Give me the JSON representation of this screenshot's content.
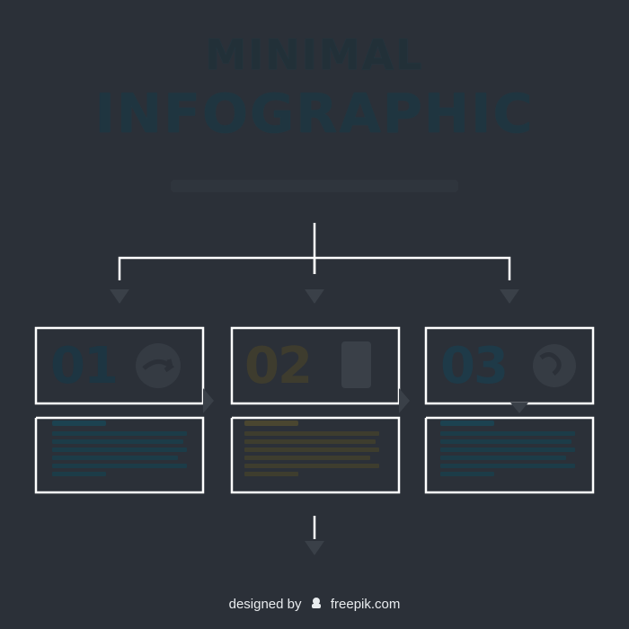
{
  "title": {
    "line1": "MINIMAL",
    "line2": "INFOGRAPHIC"
  },
  "steps": [
    {
      "number": "01",
      "icon": "globe-arrow-icon",
      "accent": "#1c3a48"
    },
    {
      "number": "02",
      "icon": "smartphone-icon",
      "accent": "#3b3a2c"
    },
    {
      "number": "03",
      "icon": "globe-icon",
      "accent": "#1d3a48"
    }
  ],
  "colors": {
    "background": "#2b3038",
    "connector": "#ffffff",
    "arrow": "#3a4048",
    "text_blue": "#1c4250",
    "text_olive": "#4a4630"
  },
  "footer": {
    "prefix": "designed by",
    "brand": "freepik.com"
  }
}
